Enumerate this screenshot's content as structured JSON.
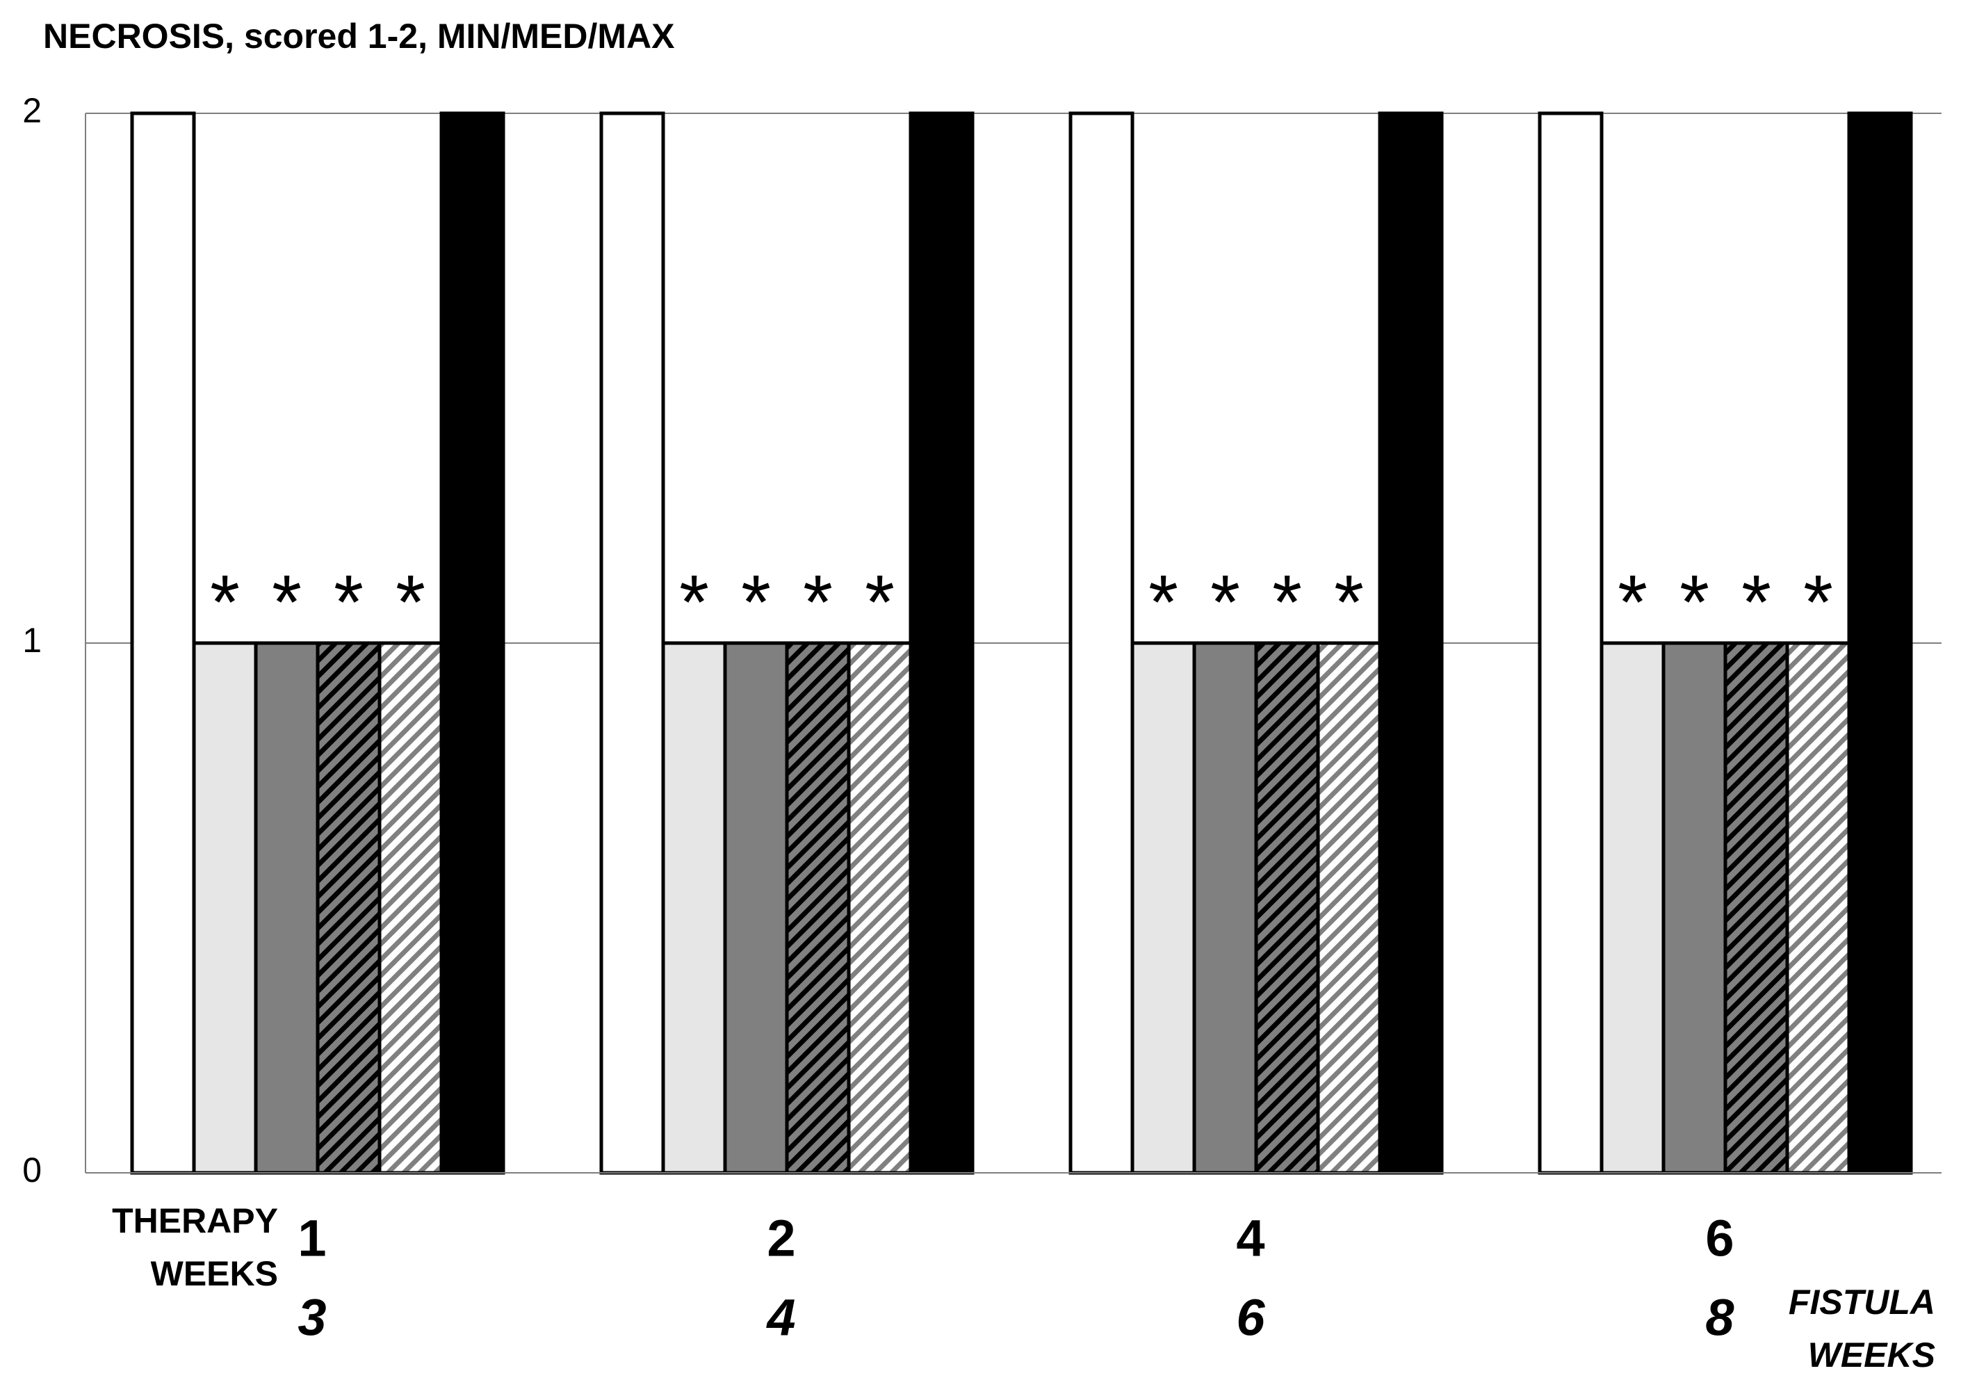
{
  "chart_data": {
    "type": "bar",
    "title": "NECROSIS, scored 1-2, MIN/MED/MAX",
    "categories": [
      "1",
      "2",
      "4",
      "6"
    ],
    "categories2": [
      "3",
      "4",
      "6",
      "8"
    ],
    "x_label_lines": [
      "THERAPY",
      "WEEKS"
    ],
    "x2_label_lines": [
      "FISTULA",
      "WEEKS"
    ],
    "series": [
      {
        "color": "#ffffff",
        "values": [
          2,
          2,
          2,
          2
        ]
      },
      {
        "color": "#e6e6e6",
        "values": [
          1,
          1,
          1,
          1
        ],
        "annotation": "*"
      },
      {
        "color": "#808080",
        "values": [
          1,
          1,
          1,
          1
        ],
        "annotation": "*"
      },
      {
        "color": "#808080",
        "hatch": "#000000",
        "values": [
          1,
          1,
          1,
          1
        ],
        "annotation": "*"
      },
      {
        "color": "#ffffff",
        "hatch": "#808080",
        "values": [
          1,
          1,
          1,
          1
        ],
        "annotation": "*"
      },
      {
        "color": "#000000",
        "values": [
          2,
          2,
          2,
          2
        ]
      }
    ],
    "ylim": [
      0,
      2
    ],
    "yticks": [
      0,
      1,
      2
    ],
    "grid": true
  }
}
